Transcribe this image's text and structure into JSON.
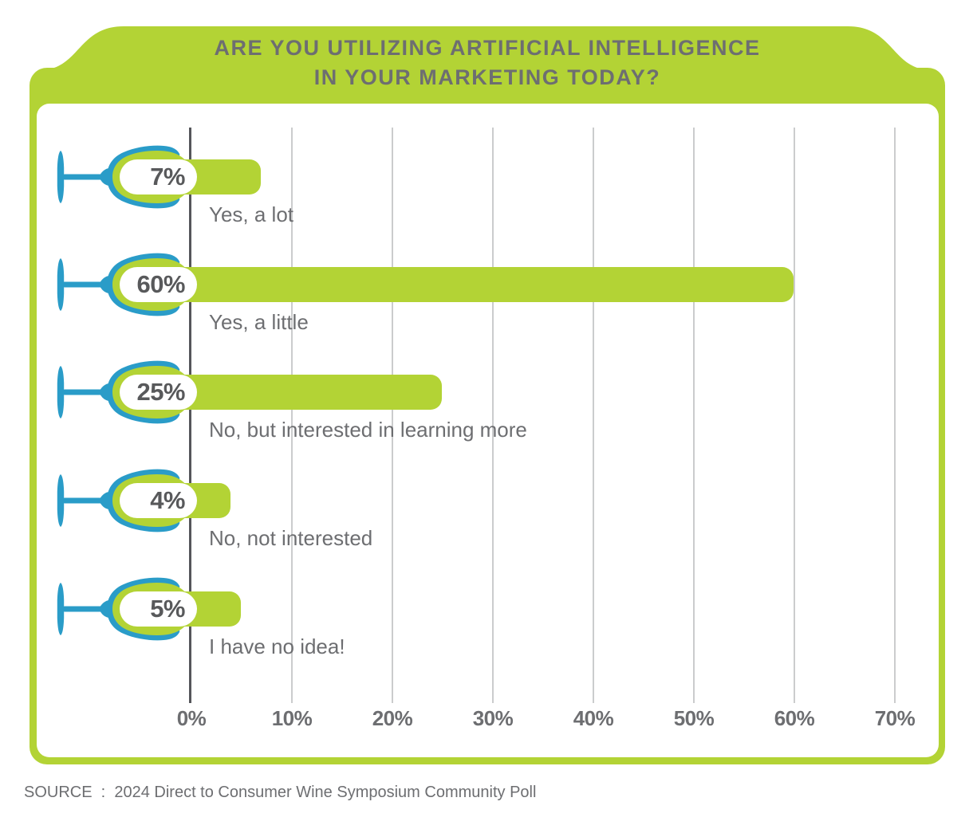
{
  "title": {
    "line1": "ARE YOU UTILIZING ARTIFICIAL INTELLIGENCE",
    "line2": "IN YOUR MARKETING TODAY?"
  },
  "source_label": "SOURCE  :  2024 Direct to Consumer Wine Symposium Community Poll",
  "colors": {
    "green": "#b3d335",
    "blue": "#2a9cc8",
    "title_gray": "#6d6e71",
    "value_gray": "#58595b",
    "gridline": "#cbcccd",
    "axis": "#55565a"
  },
  "icons": {
    "row_marker": "wine-glass-icon"
  },
  "chart_data": {
    "type": "bar",
    "orientation": "horizontal",
    "title": "ARE YOU UTILIZING ARTIFICIAL INTELLIGENCE IN YOUR MARKETING TODAY?",
    "categories": [
      "Yes, a lot",
      "Yes, a little",
      "No, but interested in learning more",
      "No, not interested",
      "I have no idea!"
    ],
    "values": [
      7,
      60,
      25,
      4,
      5
    ],
    "value_labels": [
      "7%",
      "60%",
      "25%",
      "4%",
      "5%"
    ],
    "x_ticks": [
      "0%",
      "10%",
      "20%",
      "30%",
      "40%",
      "50%",
      "60%",
      "70%"
    ],
    "xlim": [
      0,
      75
    ],
    "x_tick_step": 10,
    "grid": true,
    "legend": false,
    "bar_color": "#b3d335",
    "source": "2024 Direct to Consumer Wine Symposium Community Poll"
  }
}
